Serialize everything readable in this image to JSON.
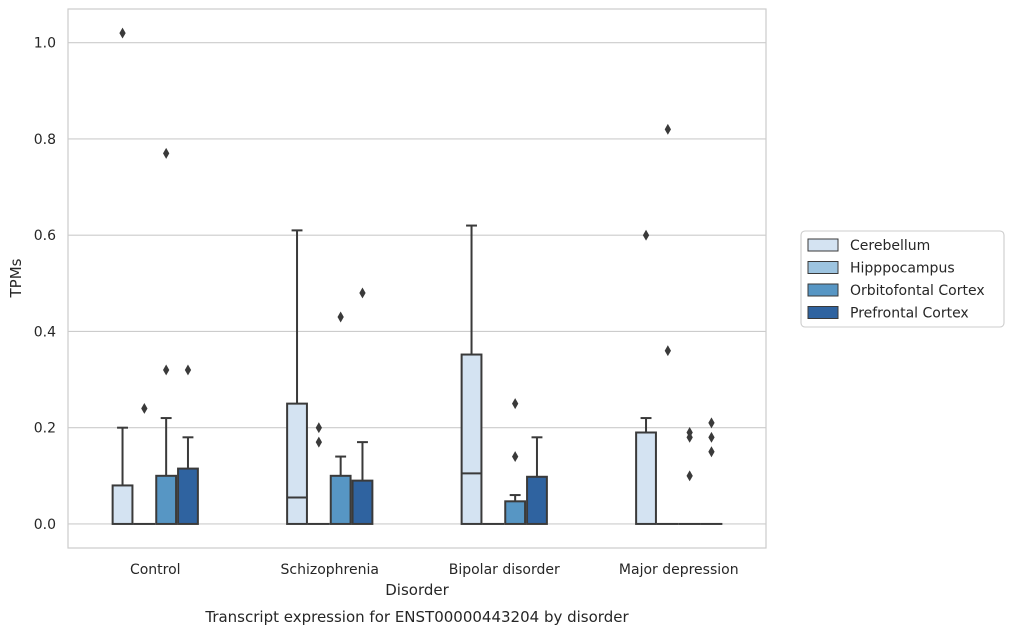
{
  "chart_data": {
    "type": "box",
    "caption": "Transcript expression for ENST00000443204 by disorder",
    "xlabel": "Disorder",
    "ylabel": "TPMs",
    "ylim": [
      -0.05,
      1.07
    ],
    "yticks": [
      0.0,
      0.2,
      0.4,
      0.6,
      0.8,
      1.0
    ],
    "ytick_labels": [
      "0.0",
      "0.2",
      "0.4",
      "0.6",
      "0.8",
      "1.0"
    ],
    "grid": "horizontal",
    "legend_position": "right",
    "categories": [
      "Control",
      "Schizophrenia",
      "Bipolar disorder",
      "Major depression"
    ],
    "series": [
      {
        "name": "Cerebellum",
        "color": "#d4e3f2",
        "boxes": [
          {
            "whislo": 0.0,
            "q1": 0.0,
            "med": 0.0,
            "q3": 0.08,
            "whishi": 0.2,
            "fliers": [
              1.02
            ]
          },
          {
            "whislo": 0.0,
            "q1": 0.0,
            "med": 0.055,
            "q3": 0.25,
            "whishi": 0.61,
            "fliers": []
          },
          {
            "whislo": 0.0,
            "q1": 0.0,
            "med": 0.105,
            "q3": 0.352,
            "whishi": 0.62,
            "fliers": []
          },
          {
            "whislo": 0.0,
            "q1": 0.0,
            "med": 0.0,
            "q3": 0.19,
            "whishi": 0.22,
            "fliers": [
              0.6
            ]
          }
        ]
      },
      {
        "name": "Hipppocampus",
        "color": "#9dc4e0",
        "boxes": [
          {
            "whislo": 0.0,
            "q1": 0.0,
            "med": 0.0,
            "q3": 0.0,
            "whishi": 0.0,
            "fliers": [
              0.24
            ]
          },
          {
            "whislo": 0.0,
            "q1": 0.0,
            "med": 0.0,
            "q3": 0.0,
            "whishi": 0.0,
            "fliers": [
              0.2,
              0.17
            ]
          },
          {
            "whislo": 0.0,
            "q1": 0.0,
            "med": 0.0,
            "q3": 0.0,
            "whishi": 0.0,
            "fliers": []
          },
          {
            "whislo": 0.0,
            "q1": 0.0,
            "med": 0.0,
            "q3": 0.0,
            "whishi": 0.0,
            "fliers": [
              0.82,
              0.36
            ]
          }
        ]
      },
      {
        "name": "Orbitofontal Cortex",
        "color": "#5796c4",
        "boxes": [
          {
            "whislo": 0.0,
            "q1": 0.0,
            "med": 0.0,
            "q3": 0.1,
            "whishi": 0.22,
            "fliers": [
              0.77,
              0.32
            ]
          },
          {
            "whislo": 0.0,
            "q1": 0.0,
            "med": 0.0,
            "q3": 0.1,
            "whishi": 0.14,
            "fliers": [
              0.43
            ]
          },
          {
            "whislo": 0.0,
            "q1": 0.0,
            "med": 0.0,
            "q3": 0.047,
            "whishi": 0.06,
            "fliers": [
              0.25,
              0.14
            ]
          },
          {
            "whislo": 0.0,
            "q1": 0.0,
            "med": 0.0,
            "q3": 0.0,
            "whishi": 0.0,
            "fliers": [
              0.19,
              0.18,
              0.1
            ]
          }
        ]
      },
      {
        "name": "Prefrontal Cortex",
        "color": "#2f63a0",
        "boxes": [
          {
            "whislo": 0.0,
            "q1": 0.0,
            "med": 0.0,
            "q3": 0.115,
            "whishi": 0.18,
            "fliers": [
              0.32
            ]
          },
          {
            "whislo": 0.0,
            "q1": 0.0,
            "med": 0.0,
            "q3": 0.09,
            "whishi": 0.17,
            "fliers": [
              0.48
            ]
          },
          {
            "whislo": 0.0,
            "q1": 0.0,
            "med": 0.0,
            "q3": 0.098,
            "whishi": 0.18,
            "fliers": []
          },
          {
            "whislo": 0.0,
            "q1": 0.0,
            "med": 0.0,
            "q3": 0.0,
            "whishi": 0.0,
            "fliers": [
              0.21,
              0.18,
              0.15
            ]
          }
        ]
      }
    ]
  }
}
